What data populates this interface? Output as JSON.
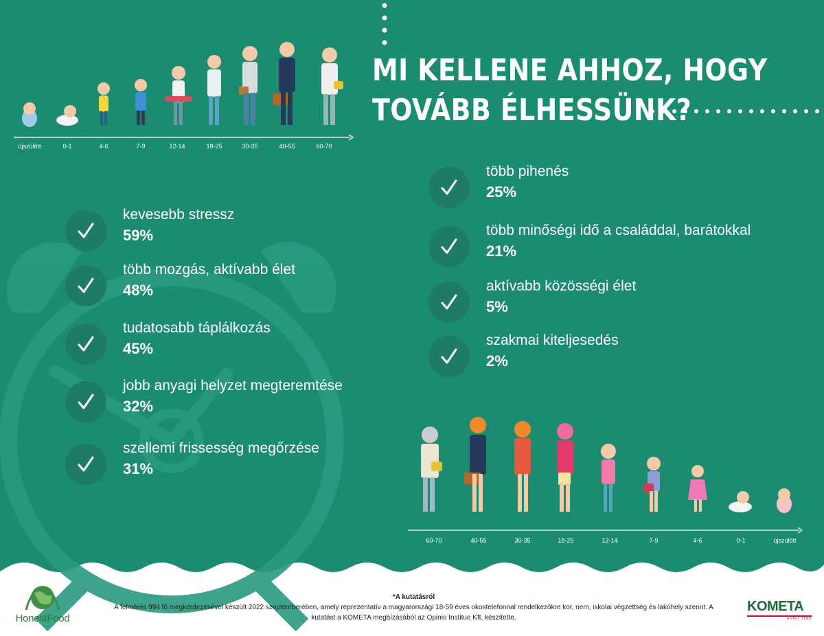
{
  "title": {
    "line1": "MI KELLENE AHHOZ, HOGY",
    "line2": "TOVÁBB ÉLHESSÜNK?"
  },
  "colors": {
    "background": "#1c8c71",
    "circle": "#1d7b66",
    "text": "#ffffff",
    "footer_bg": "#ffffff"
  },
  "top_timeline": {
    "ages": [
      "újszülött",
      "0-1",
      "4-6",
      "7-9",
      "12-14",
      "18-25",
      "30-35",
      "40-55",
      "60-70"
    ]
  },
  "bottom_timeline": {
    "ages": [
      "60-70",
      "40-55",
      "30-35",
      "18-25",
      "12-14",
      "7-9",
      "4-6",
      "0-1",
      "újszülött"
    ]
  },
  "left_items": [
    {
      "label": "kevesebb stressz",
      "value": "59%",
      "icon": "check-icon"
    },
    {
      "label": "több mozgás, aktívabb élet",
      "value": "48%",
      "icon": "check-icon"
    },
    {
      "label": "tudatosabb táplálkozás",
      "value": "45%",
      "icon": "check-icon"
    },
    {
      "label": "jobb anyagi helyzet megteremtése",
      "value": "32%",
      "icon": "check-icon"
    },
    {
      "label": "szellemi frissesség megőrzése",
      "value": "31%",
      "icon": "check-icon"
    }
  ],
  "right_items": [
    {
      "label": "több pihenés",
      "value": "25%",
      "icon": "check-icon"
    },
    {
      "label": "több minőségi idő a családdal, barátokkal",
      "value": "21%",
      "icon": "check-icon"
    },
    {
      "label": "aktívabb közösségi élet",
      "value": "5%",
      "icon": "check-icon"
    },
    {
      "label": "szakmai kiteljesedés",
      "value": "2%",
      "icon": "check-icon"
    }
  ],
  "footer": {
    "title": "*A kutatásról",
    "text": "A felmérés 994 fő megkérdezésével készült 2022 szeptemberében, amely reprezentatív a magyarországi 18-59 éves okostelefonnal rendelkezőkre kor, nem, iskolai végzettség és lakóhely szerint. A kutatást a KOMETA megbízásából az Opinio Institue Kft. készítette."
  },
  "logos": {
    "left": "HonestFood",
    "right": "KOMETA",
    "right_sub": "ANNO 1989"
  }
}
